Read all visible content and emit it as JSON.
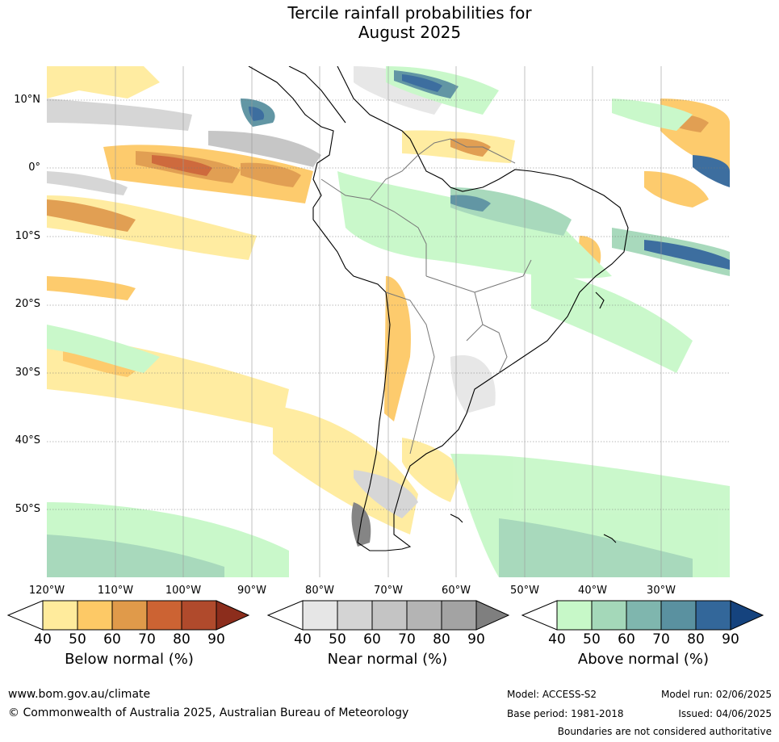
{
  "title_line1": "Tercile rainfall probabilities for",
  "title_line2": "August 2025",
  "lat_labels": [
    "10°N",
    "0°",
    "10°S",
    "20°S",
    "30°S",
    "40°S",
    "50°S"
  ],
  "lon_labels": [
    "120°W",
    "110°W",
    "100°W",
    "90°W",
    "80°W",
    "70°W",
    "60°W",
    "50°W",
    "40°W",
    "30°W"
  ],
  "colorbars": [
    {
      "title": "Below normal (%)",
      "ticks": [
        "40",
        "50",
        "60",
        "70",
        "80",
        "90"
      ],
      "colors": [
        "#ffffff",
        "#ffeb9c",
        "#fdc966",
        "#e09a4a",
        "#cc6333",
        "#b04a2c",
        "#8c2d1c"
      ]
    },
    {
      "title": "Near normal (%)",
      "ticks": [
        "40",
        "50",
        "60",
        "70",
        "80",
        "90"
      ],
      "colors": [
        "#ffffff",
        "#e6e6e6",
        "#d4d4d4",
        "#c4c4c4",
        "#b4b4b4",
        "#a3a3a3",
        "#7f7f7f"
      ]
    },
    {
      "title": "Above normal (%)",
      "ticks": [
        "40",
        "50",
        "60",
        "70",
        "80",
        "90"
      ],
      "colors": [
        "#ffffff",
        "#c7f8c8",
        "#a4d8b9",
        "#7fb6ae",
        "#5a91a0",
        "#33679a",
        "#15437e"
      ]
    }
  ],
  "footer": {
    "website": "www.bom.gov.au/climate",
    "copyright": "© Commonwealth of Australia 2025, Australian Bureau of Meteorology",
    "model": "Model: ACCESS-S2",
    "model_run": "Model run: 02/06/2025",
    "base_period": "Base period: 1981-2018",
    "issued": "Issued: 04/06/2025",
    "disclaimer": "Boundaries are not considered authoritative"
  }
}
